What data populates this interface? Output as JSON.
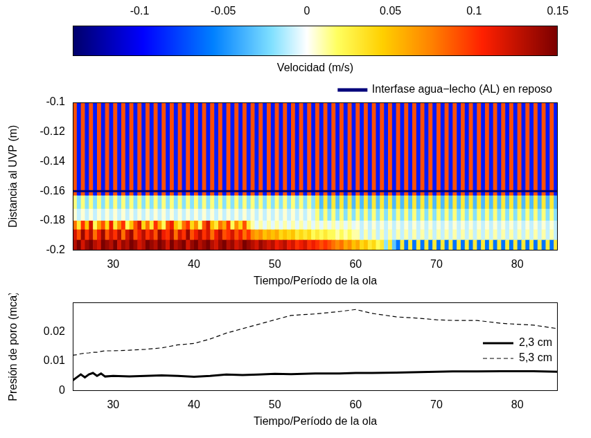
{
  "chart_data": [
    {
      "type": "heatmap",
      "xlabel": "Tiempo/Período de la ola",
      "ylabel": "Distancia al UVP (m)",
      "xlim": [
        25,
        85
      ],
      "xticks": [
        30,
        40,
        50,
        60,
        70,
        80
      ],
      "ylim": [
        -0.2,
        -0.1
      ],
      "yticks": [
        -0.2,
        -0.18,
        -0.16,
        -0.14,
        -0.12,
        -0.1
      ],
      "grid": false,
      "legend": "top",
      "colorbar": {
        "label": "Velocidad (m/s)",
        "lim": [
          -0.14,
          0.15
        ],
        "ticks": [
          -0.1,
          -0.05,
          0,
          0.05,
          0.1,
          0.15
        ]
      },
      "x_edges": [
        25,
        25.5,
        26,
        26.5,
        27,
        27.5,
        28,
        28.5,
        29,
        29.5,
        30,
        30.5,
        31,
        31.5,
        32,
        32.5,
        33,
        33.5,
        34,
        34.5,
        35,
        35.5,
        36,
        36.5,
        37,
        37.5,
        38,
        38.5,
        39,
        39.5,
        40,
        40.5,
        41,
        41.5,
        42,
        42.5,
        43,
        43.5,
        44,
        44.5,
        45,
        45.5,
        46,
        46.5,
        47,
        47.5,
        48,
        48.5,
        49,
        49.5,
        50,
        50.5,
        51,
        51.5,
        52,
        52.5,
        53,
        53.5,
        54,
        54.5,
        55,
        55.5,
        56,
        56.5,
        57,
        57.5,
        58,
        58.5,
        59,
        59.5,
        60,
        60.5,
        61,
        61.5,
        62,
        62.5,
        63,
        63.5,
        64,
        64.5,
        65,
        65.5,
        66,
        66.5,
        67,
        67.5,
        68,
        68.5,
        69,
        69.5,
        70,
        70.5,
        71,
        71.5,
        72,
        72.5,
        73,
        73.5,
        74,
        74.5,
        75,
        75.5,
        76,
        76.5,
        77,
        77.5,
        78,
        78.5,
        79,
        79.5,
        80,
        80.5,
        81,
        81.5,
        82,
        82.5,
        83,
        83.5,
        84,
        84.5,
        85
      ],
      "y_edges": [
        -0.1,
        -0.163,
        -0.172,
        -0.18,
        -0.186,
        -0.193,
        -0.2
      ],
      "cells": [
        [
          0.09,
          -0.09,
          0.09,
          -0.09,
          0.09,
          -0.09,
          0.09,
          -0.09,
          0.09,
          -0.09,
          0.09,
          -0.09,
          0.09,
          -0.09,
          0.09,
          -0.09,
          0.09,
          -0.09,
          0.09,
          -0.09,
          0.09,
          -0.09,
          0.09,
          -0.09,
          0.09,
          -0.09,
          0.09,
          -0.09,
          0.09,
          -0.09,
          0.09,
          -0.09,
          0.09,
          -0.09,
          0.09,
          -0.09,
          0.09,
          -0.09,
          0.09,
          -0.09,
          0.09,
          -0.09,
          0.09,
          -0.09,
          0.09,
          -0.09,
          0.09,
          -0.09,
          0.09,
          -0.09,
          0.09,
          -0.09,
          0.09,
          -0.09,
          0.09,
          -0.09,
          0.09,
          -0.09,
          0.09,
          -0.09,
          0.09,
          -0.09,
          0.09,
          -0.09,
          0.09,
          -0.09,
          0.09,
          -0.09,
          0.09,
          -0.09,
          0.09,
          -0.09,
          0.09,
          -0.09,
          0.09,
          -0.09,
          0.09,
          -0.09,
          0.09,
          -0.09,
          0.09,
          -0.09,
          0.09,
          -0.09,
          0.09,
          -0.09,
          0.09,
          -0.09,
          0.09,
          -0.09,
          0.09,
          -0.09,
          0.09,
          -0.09,
          0.09,
          -0.09,
          0.09,
          -0.09,
          0.09,
          -0.09,
          0.09,
          -0.09,
          0.09,
          -0.09,
          0.09,
          -0.09,
          0.09,
          -0.09,
          0.09,
          -0.09,
          0.09,
          -0.09,
          0.09,
          -0.09,
          0.09,
          -0.09,
          0.09,
          -0.09,
          0.09,
          -0.09
        ],
        [
          0.015,
          -0.02,
          0.015,
          -0.02,
          0.015,
          -0.02,
          0.015,
          -0.02,
          0.015,
          -0.02,
          0.015,
          -0.02,
          0.015,
          -0.02,
          0.015,
          -0.02,
          0.015,
          -0.02,
          0.015,
          -0.02,
          0.015,
          -0.02,
          0.015,
          -0.02,
          0.015,
          -0.02,
          0.015,
          -0.02,
          0.015,
          -0.02,
          0.015,
          -0.02,
          0.015,
          -0.02,
          0.015,
          -0.02,
          0.015,
          -0.02,
          0.015,
          -0.02,
          0.015,
          -0.02,
          0.015,
          -0.02,
          0.015,
          -0.02,
          0.015,
          -0.02,
          0.015,
          -0.02,
          0.015,
          -0.02,
          0.015,
          -0.02,
          0.015,
          -0.02,
          0.015,
          -0.02,
          0.015,
          -0.02,
          0.03,
          -0.035,
          0.03,
          -0.035,
          0.03,
          -0.035,
          0.03,
          -0.035,
          0.03,
          -0.035,
          0.03,
          -0.035,
          0.03,
          -0.035,
          0.03,
          -0.035,
          0.03,
          -0.035,
          0.03,
          -0.035,
          0.03,
          -0.035,
          0.03,
          -0.035,
          0.03,
          -0.035,
          0.03,
          -0.035,
          0.03,
          -0.035,
          0.03,
          -0.035,
          0.03,
          -0.035,
          0.03,
          -0.035,
          0.03,
          -0.035,
          0.03,
          -0.035,
          0.03,
          -0.035,
          0.03,
          -0.035,
          0.03,
          -0.035,
          0.03,
          -0.035,
          0.03,
          -0.035,
          0.03,
          -0.035,
          0.03,
          -0.035,
          0.03,
          -0.035,
          0.03,
          -0.035,
          0.03,
          -0.035
        ],
        [
          0.005,
          -0.01,
          0.005,
          -0.01,
          0.005,
          -0.01,
          0.005,
          -0.01,
          0.005,
          -0.01,
          0.005,
          -0.01,
          0.005,
          -0.01,
          0.005,
          -0.01,
          0.005,
          -0.01,
          0.005,
          -0.01,
          0.005,
          -0.01,
          0.005,
          -0.01,
          0.005,
          -0.01,
          0.005,
          -0.01,
          0.005,
          -0.01,
          0.005,
          -0.01,
          0.005,
          -0.01,
          0.005,
          -0.01,
          0.005,
          -0.01,
          0.005,
          -0.01,
          0.005,
          -0.01,
          0.005,
          -0.01,
          0.005,
          -0.01,
          0.005,
          -0.01,
          0.005,
          -0.01,
          0.005,
          -0.01,
          0.005,
          -0.01,
          0.005,
          -0.01,
          0.005,
          -0.01,
          0.005,
          -0.01,
          0.015,
          -0.02,
          0.015,
          -0.02,
          0.015,
          -0.02,
          0.015,
          -0.02,
          0.015,
          -0.02,
          0.015,
          -0.02,
          0.015,
          -0.02,
          0.015,
          -0.02,
          0.015,
          -0.02,
          0.015,
          -0.02,
          0.015,
          -0.02,
          0.015,
          -0.02,
          0.015,
          -0.02,
          0.015,
          -0.02,
          0.015,
          -0.02,
          0.015,
          -0.02,
          0.015,
          -0.02,
          0.015,
          -0.02,
          0.015,
          -0.02,
          0.015,
          -0.02,
          0.015,
          -0.02,
          0.015,
          -0.02,
          0.015,
          -0.02,
          0.015,
          -0.02,
          0.015,
          -0.02,
          0.015,
          -0.02,
          0.015,
          -0.02,
          0.015,
          -0.02,
          0.015,
          -0.02,
          0.015,
          -0.02
        ],
        [
          0.08,
          0.03,
          0.1,
          0.05,
          0.12,
          0.02,
          0.06,
          0.09,
          0.04,
          0.11,
          0.03,
          0.07,
          0.1,
          0.02,
          0.05,
          0.09,
          0.12,
          0.04,
          0.08,
          0.03,
          0.1,
          0.06,
          0.02,
          0.09,
          0.11,
          0.05,
          0.03,
          0.08,
          0.1,
          0.04,
          0.07,
          0.02,
          0.09,
          0.12,
          0.05,
          0.03,
          0.08,
          0.06,
          0.1,
          0.02,
          0.07,
          0.04,
          0.09,
          0.03,
          0.01,
          -0.005,
          0.01,
          -0.005,
          0.01,
          -0.005,
          0.01,
          -0.005,
          0.01,
          -0.005,
          0.01,
          -0.005,
          0.01,
          -0.005,
          0.01,
          -0.005,
          0.01,
          -0.005,
          0.01,
          -0.005,
          0.01,
          -0.005,
          0.01,
          -0.005,
          0.01,
          -0.005,
          0.005,
          -0.01,
          0.005,
          -0.01,
          0.005,
          -0.01,
          0.005,
          -0.01,
          0.005,
          -0.01,
          0.005,
          -0.01,
          0.005,
          -0.01,
          0.005,
          -0.01,
          0.005,
          -0.01,
          0.005,
          -0.01,
          0.005,
          -0.01,
          0.005,
          -0.01,
          0.005,
          -0.01,
          0.005,
          -0.01,
          0.005,
          -0.01,
          0.005,
          -0.01,
          0.005,
          -0.01,
          0.005,
          -0.01,
          0.005,
          -0.01,
          0.005,
          -0.01,
          0.005,
          -0.01,
          0.005,
          -0.01,
          0.005,
          -0.01,
          0.005,
          -0.01,
          0.005,
          -0.01
        ],
        [
          0.12,
          0.09,
          0.14,
          0.1,
          0.13,
          0.08,
          0.11,
          0.14,
          0.09,
          0.12,
          0.1,
          0.13,
          0.08,
          0.12,
          0.14,
          0.09,
          0.11,
          0.13,
          0.1,
          0.12,
          0.09,
          0.14,
          0.11,
          0.1,
          0.13,
          0.08,
          0.12,
          0.1,
          0.14,
          0.09,
          0.11,
          0.13,
          0.1,
          0.12,
          0.08,
          0.11,
          0.13,
          0.09,
          0.1,
          0.12,
          0.09,
          0.11,
          0.08,
          0.1,
          0.07,
          0.06,
          0.07,
          0.05,
          0.06,
          0.05,
          0.06,
          0.04,
          0.05,
          0.04,
          0.05,
          0.03,
          0.04,
          0.03,
          0.04,
          0.02,
          0.03,
          0.02,
          0.03,
          0.02,
          0.02,
          0.01,
          0.02,
          0.01,
          0.02,
          0.01,
          0.01,
          -0.01,
          0.01,
          -0.01,
          0.01,
          -0.01,
          0.01,
          -0.01,
          0.01,
          -0.01,
          0.01,
          -0.01,
          0.01,
          -0.01,
          0.01,
          -0.01,
          0.01,
          -0.01,
          0.01,
          -0.01,
          0.01,
          -0.01,
          0.01,
          -0.01,
          0.01,
          -0.01,
          0.01,
          -0.01,
          0.01,
          -0.01,
          0.01,
          -0.01,
          0.01,
          -0.01,
          0.01,
          -0.01,
          0.01,
          -0.01,
          0.01,
          -0.01,
          0.01,
          -0.01,
          0.01,
          -0.01,
          0.01,
          -0.01,
          0.01,
          -0.01,
          0.01,
          -0.01
        ],
        [
          0.13,
          0.15,
          0.12,
          0.14,
          0.15,
          0.13,
          0.12,
          0.15,
          0.14,
          0.13,
          0.15,
          0.12,
          0.14,
          0.13,
          0.15,
          0.14,
          0.12,
          0.13,
          0.15,
          0.14,
          0.13,
          0.15,
          0.14,
          0.12,
          0.15,
          0.13,
          0.14,
          0.15,
          0.12,
          0.14,
          0.15,
          0.13,
          0.14,
          0.15,
          0.13,
          0.12,
          0.14,
          0.15,
          0.13,
          0.14,
          0.12,
          0.13,
          0.15,
          0.14,
          0.13,
          0.12,
          0.14,
          0.13,
          0.12,
          0.13,
          0.11,
          0.12,
          0.13,
          0.11,
          0.12,
          0.1,
          0.11,
          0.12,
          0.1,
          0.11,
          0.1,
          0.09,
          0.1,
          0.09,
          0.08,
          0.07,
          0.08,
          0.06,
          0.07,
          0.05,
          0.06,
          0.04,
          0.05,
          0.03,
          0.04,
          0.02,
          0.03,
          -0.02,
          0.03,
          -0.03,
          -0.06,
          0.03,
          -0.06,
          0.03,
          -0.06,
          0.03,
          -0.06,
          0.03,
          -0.06,
          0.03,
          -0.06,
          0.03,
          -0.06,
          0.03,
          -0.06,
          0.03,
          -0.06,
          0.03,
          -0.06,
          0.03,
          -0.06,
          0.03,
          -0.06,
          0.03,
          -0.06,
          0.03,
          -0.06,
          0.03,
          -0.06,
          0.03,
          -0.06,
          0.03,
          -0.06,
          0.03,
          -0.06,
          0.03,
          -0.06,
          0.03,
          -0.06,
          0.03
        ]
      ],
      "series": [
        {
          "name": "Interfase agua−lecho (AL) en reposo",
          "type": "line",
          "line_style": "solid",
          "color": "#00007a",
          "x": [
            25,
            85
          ],
          "values": [
            -0.16,
            -0.16
          ]
        }
      ]
    },
    {
      "type": "line",
      "xlabel": "Tiempo/Período de la ola",
      "ylabel": "Presión de poro (mca)",
      "xlim": [
        25,
        85
      ],
      "xticks": [
        30,
        40,
        50,
        60,
        70,
        80
      ],
      "ylim": [
        0,
        0.03
      ],
      "yticks": [
        0,
        0.01,
        0.02
      ],
      "grid": false,
      "legend": "right",
      "x": [
        25,
        25.5,
        26,
        26.5,
        27,
        27.5,
        28,
        28.5,
        29,
        30,
        32,
        34,
        36,
        38,
        40,
        42,
        44,
        46,
        48,
        50,
        52,
        55,
        58,
        60,
        62,
        65,
        68,
        70,
        72,
        75,
        78,
        80,
        82,
        85
      ],
      "series": [
        {
          "name": "2,3 cm",
          "color": "#000000",
          "line_style": "solid",
          "values": [
            0.0035,
            0.0045,
            0.0055,
            0.0045,
            0.0055,
            0.006,
            0.005,
            0.0058,
            0.0048,
            0.005,
            0.0048,
            0.005,
            0.0052,
            0.005,
            0.0047,
            0.005,
            0.0055,
            0.0053,
            0.0055,
            0.0057,
            0.0056,
            0.0058,
            0.0058,
            0.006,
            0.006,
            0.0061,
            0.0063,
            0.0064,
            0.0065,
            0.0065,
            0.0066,
            0.0066,
            0.0066,
            0.0064
          ]
        },
        {
          "name": "5,3 cm",
          "color": "#000000",
          "line_style": "dashed",
          "values": [
            0.012,
            0.0122,
            0.0125,
            0.0127,
            0.0128,
            0.013,
            0.013,
            0.0133,
            0.0135,
            0.0135,
            0.0137,
            0.014,
            0.0145,
            0.0155,
            0.016,
            0.0175,
            0.0195,
            0.021,
            0.0225,
            0.024,
            0.0255,
            0.026,
            0.0268,
            0.0275,
            0.0262,
            0.025,
            0.0245,
            0.024,
            0.0238,
            0.0238,
            0.0228,
            0.0225,
            0.0222,
            0.021
          ]
        }
      ]
    }
  ]
}
